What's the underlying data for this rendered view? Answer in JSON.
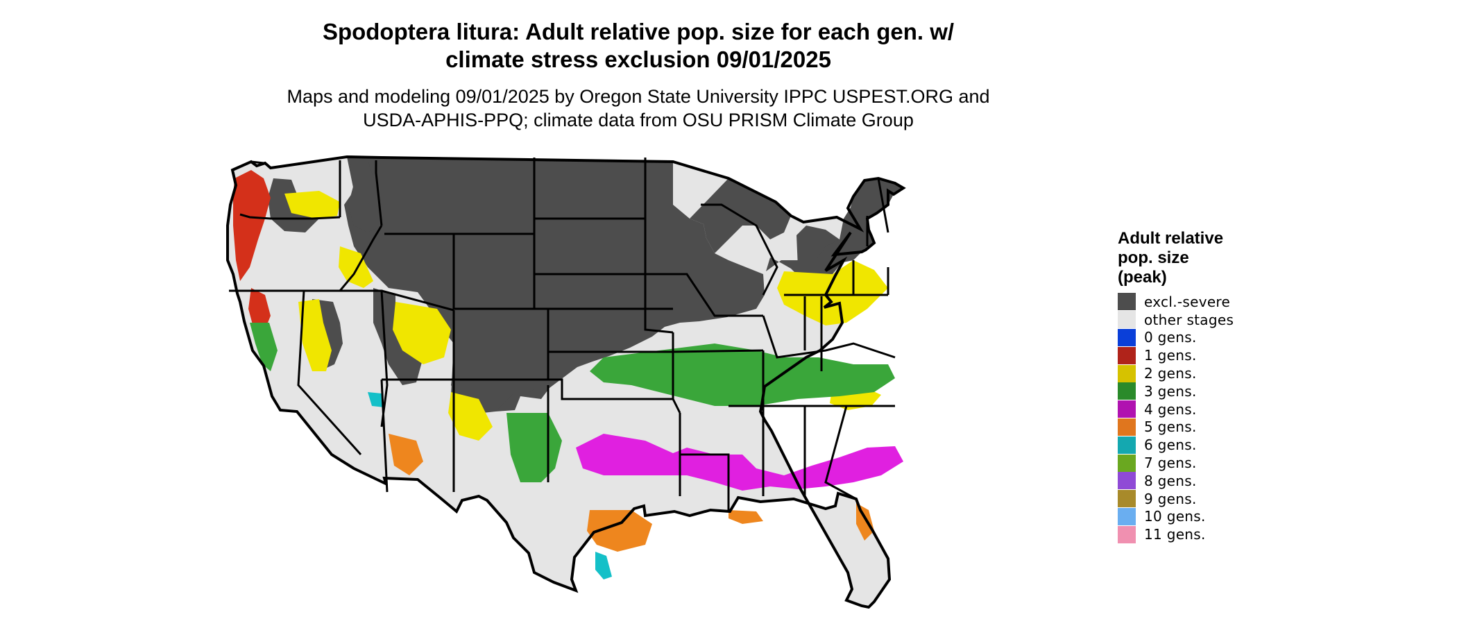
{
  "title": {
    "line1": "Spodoptera litura: Adult relative pop. size for each gen. w/",
    "line2": "climate stress exclusion 09/01/2025"
  },
  "subtitle": {
    "line1": "Maps and modeling 09/01/2025 by Oregon State University IPPC USPEST.ORG and",
    "line2": "USDA-APHIS-PPQ; climate data from OSU PRISM Climate Group"
  },
  "legend": {
    "title_lines": [
      "Adult relative",
      "pop. size",
      "(peak)"
    ],
    "items": [
      {
        "label": "excl.-severe",
        "color": "#4d4d4d"
      },
      {
        "label": "other stages",
        "color": "#e5e5e5"
      },
      {
        "label": "0 gens.",
        "color": "#0a3fd9"
      },
      {
        "label": "1 gens.",
        "color": "#b0231a"
      },
      {
        "label": "2 gens.",
        "color": "#d6c200"
      },
      {
        "label": "3 gens.",
        "color": "#2a8a2a"
      },
      {
        "label": "4 gens.",
        "color": "#b012b0"
      },
      {
        "label": "5 gens.",
        "color": "#e0761e"
      },
      {
        "label": "6 gens.",
        "color": "#14a8b0"
      },
      {
        "label": "7 gens.",
        "color": "#6aa820"
      },
      {
        "label": "8 gens.",
        "color": "#8f4ad6"
      },
      {
        "label": "9 gens.",
        "color": "#a88a2a"
      },
      {
        "label": "10 gens.",
        "color": "#6aaef0"
      },
      {
        "label": "11 gens.",
        "color": "#f090b0"
      }
    ]
  },
  "map_colors": {
    "excluded": "#4d4d4d",
    "other": "#e5e5e5",
    "gen1": "#d4301a",
    "gen2": "#f0e600",
    "gen3": "#3aa63a",
    "gen4": "#e020e0",
    "gen5": "#ee861e",
    "gen6": "#14c0c8",
    "border": "#000000"
  }
}
